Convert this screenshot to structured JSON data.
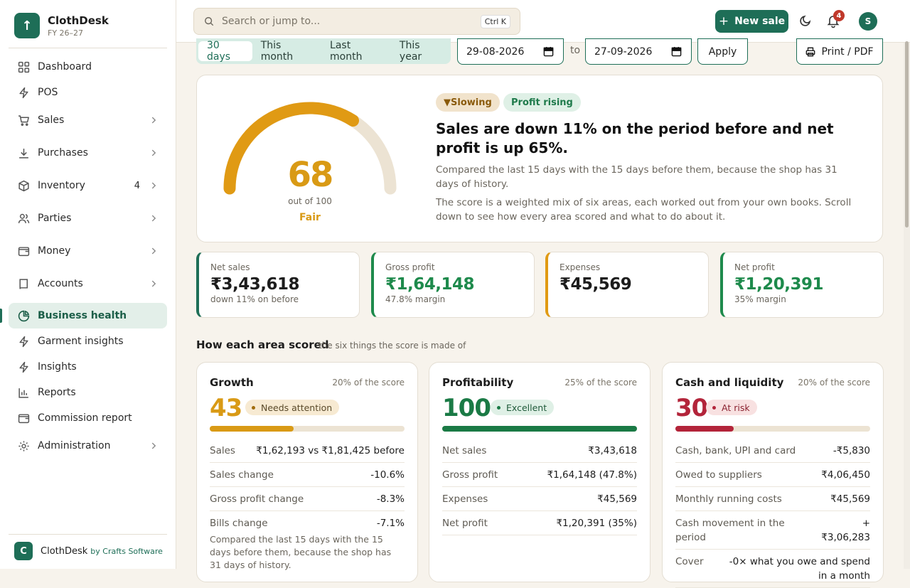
{
  "brand": {
    "name": "ClothDesk",
    "sub": "FY 26–27",
    "logo_glyph": "↑"
  },
  "nav": {
    "dashboard": "Dashboard",
    "pos": "POS",
    "sales": "Sales",
    "purchases": "Purchases",
    "inventory": "Inventory",
    "inventory_count": "4",
    "parties": "Parties",
    "money": "Money",
    "accounts": "Accounts",
    "business_health": "Business health",
    "garment_insights": "Garment insights",
    "insights": "Insights",
    "reports": "Reports",
    "commission_report": "Commission report",
    "administration": "Administration"
  },
  "footer": {
    "logo_letter": "C",
    "name": "ClothDesk",
    "by": "by Crafts Software"
  },
  "topbar": {
    "search_placeholder": "Search or jump to...",
    "search_shortcut": "Ctrl K",
    "new_sale": "New sale",
    "notifications": "4",
    "avatar": "S"
  },
  "filters": {
    "ranges": [
      "30 days",
      "This month",
      "Last month",
      "This year"
    ],
    "selected": "30 days",
    "from": "29-08-2026",
    "to_label": "to",
    "to": "27-09-2026",
    "apply": "Apply",
    "print": "Print / PDF"
  },
  "health": {
    "score": 68,
    "score_max": 100,
    "score_text": "68",
    "out_of": "out of 100",
    "grade": "Fair",
    "tag_trend": "▼Slowing",
    "tag_profit": "Profit rising",
    "headline": "Sales are down 11% on the period before and net profit is up 65%.",
    "desc1": "Compared the last 15 days with the 15 days before them, because the shop has 31 days of history.",
    "desc2": "The score is a weighted mix of six areas, each worked out from your own books. Scroll down to see how every area scored and what to do about it.",
    "gauge_color": "#e09a14",
    "gauge_track": "#ece3d3"
  },
  "kpis": [
    {
      "label": "Net sales",
      "value": "₹3,43,618",
      "sub": "down 11% on before",
      "accent": "#1e6e57",
      "value_color": "#1d1d1d"
    },
    {
      "label": "Gross profit",
      "value": "₹1,64,148",
      "sub": "47.8% margin",
      "accent": "#1e8a4c",
      "value_color": "#1e8a4c"
    },
    {
      "label": "Expenses",
      "value": "₹45,569",
      "sub": "",
      "accent": "#e09a14",
      "value_color": "#1d1d1d"
    },
    {
      "label": "Net profit",
      "value": "₹1,20,391",
      "sub": "35% margin",
      "accent": "#1e8a4c",
      "value_color": "#1e8a4c"
    }
  ],
  "areas_section": {
    "title": "How each area scored",
    "subtitle": "the six things the score is made of"
  },
  "areas": [
    {
      "title": "Growth",
      "weight": "20% of the score",
      "score": 43,
      "score_text": "43",
      "status": "Needs attention",
      "color": "#d99a15",
      "pill_bg": "#f7ead2",
      "pill_fg": "#5a4a2a",
      "dot": "#a06c0a",
      "rows": [
        {
          "label": "Sales",
          "value": "₹1,62,193 vs ₹1,81,425 before"
        },
        {
          "label": "Sales change",
          "value": "-10.6%"
        },
        {
          "label": "Gross profit change",
          "value": "-8.3%"
        },
        {
          "label": "Bills change",
          "value": "-7.1%"
        }
      ],
      "note": "Compared the last 15 days with the 15 days before them, because the shop has 31 days of history."
    },
    {
      "title": "Profitability",
      "weight": "25% of the score",
      "score": 100,
      "score_text": "100",
      "status": "Excellent",
      "color": "#1a7a45",
      "pill_bg": "#dff0e6",
      "pill_fg": "#1f5a3a",
      "dot": "#1a7a45",
      "rows": [
        {
          "label": "Net sales",
          "value": "₹3,43,618"
        },
        {
          "label": "Gross profit",
          "value": "₹1,64,148 (47.8%)"
        },
        {
          "label": "Expenses",
          "value": "₹45,569"
        },
        {
          "label": "Net profit",
          "value": "₹1,20,391 (35%)"
        }
      ],
      "note": ""
    },
    {
      "title": "Cash and liquidity",
      "weight": "20% of the score",
      "score": 30,
      "score_text": "30",
      "status": "At risk",
      "color": "#b3243a",
      "pill_bg": "#f8e1e1",
      "pill_fg": "#8a2230",
      "dot": "#b3243a",
      "rows": [
        {
          "label": "Cash, bank, UPI and card",
          "value": "-₹5,830"
        },
        {
          "label": "Owed to suppliers",
          "value": "₹4,06,450"
        },
        {
          "label": "Monthly running costs",
          "value": "₹45,569"
        },
        {
          "label": "Cash movement in the period",
          "value": "+₹3,06,283"
        },
        {
          "label": "Cover",
          "value": "-0× what you owe and spend in a month"
        }
      ],
      "note": ""
    }
  ]
}
